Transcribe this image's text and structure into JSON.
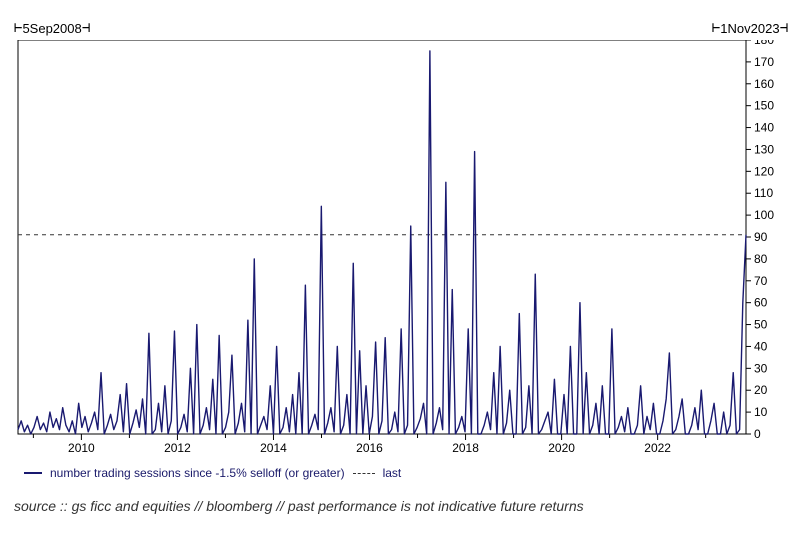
{
  "date_start": "5Sep2008",
  "date_end": "1Nov2023",
  "legend_main": "number trading sessions since -1.5% selloff (or greater)",
  "legend_last": "last",
  "source_text": "source :: gs ficc and equities // bloomberg // past performance is not indicative future returns",
  "chart": {
    "type": "line",
    "line_color": "#191970",
    "line_width": 1.4,
    "background_color": "#ffffff",
    "axis_color": "#000000",
    "tick_color": "#000000",
    "reference_line": {
      "value": 91,
      "color": "#333333",
      "dash": "4 4",
      "width": 1
    },
    "ylim": [
      0,
      180
    ],
    "ytick_step": 10,
    "x_start_year": 2008.68,
    "x_end_year": 2023.84,
    "xticks_years": [
      2010,
      2012,
      2014,
      2016,
      2018,
      2020,
      2022
    ],
    "label_fontsize": 12,
    "series_y": [
      2,
      6,
      1,
      4,
      0,
      3,
      8,
      2,
      5,
      1,
      10,
      3,
      7,
      2,
      12,
      4,
      1,
      6,
      0,
      14,
      3,
      8,
      1,
      5,
      10,
      2,
      28,
      0,
      4,
      9,
      2,
      6,
      18,
      1,
      23,
      0,
      5,
      11,
      3,
      16,
      0,
      46,
      0,
      2,
      14,
      1,
      22,
      0,
      6,
      47,
      0,
      3,
      9,
      1,
      30,
      0,
      50,
      0,
      4,
      12,
      2,
      25,
      0,
      45,
      0,
      3,
      10,
      36,
      0,
      5,
      14,
      1,
      52,
      0,
      80,
      0,
      4,
      8,
      2,
      22,
      0,
      40,
      0,
      3,
      12,
      1,
      18,
      0,
      28,
      0,
      68,
      0,
      4,
      9,
      2,
      104,
      0,
      5,
      12,
      1,
      40,
      0,
      4,
      18,
      0,
      78,
      0,
      38,
      0,
      22,
      0,
      8,
      42,
      0,
      6,
      44,
      0,
      2,
      10,
      1,
      48,
      0,
      4,
      95,
      0,
      3,
      7,
      14,
      0,
      175,
      0,
      5,
      12,
      2,
      115,
      0,
      66,
      0,
      3,
      8,
      1,
      48,
      0,
      129,
      0,
      0,
      4,
      10,
      2,
      28,
      0,
      40,
      0,
      5,
      20,
      0,
      0,
      55,
      0,
      3,
      22,
      0,
      73,
      0,
      2,
      6,
      10,
      0,
      25,
      0,
      0,
      18,
      0,
      40,
      0,
      0,
      60,
      0,
      28,
      0,
      4,
      14,
      0,
      22,
      0,
      0,
      48,
      0,
      3,
      8,
      1,
      12,
      0,
      0,
      4,
      22,
      0,
      8,
      2,
      14,
      0,
      0,
      6,
      16,
      37,
      0,
      2,
      8,
      16,
      0,
      0,
      4,
      12,
      2,
      20,
      0,
      0,
      6,
      14,
      0,
      0,
      10,
      0,
      4,
      28,
      0,
      2,
      60,
      91
    ]
  }
}
